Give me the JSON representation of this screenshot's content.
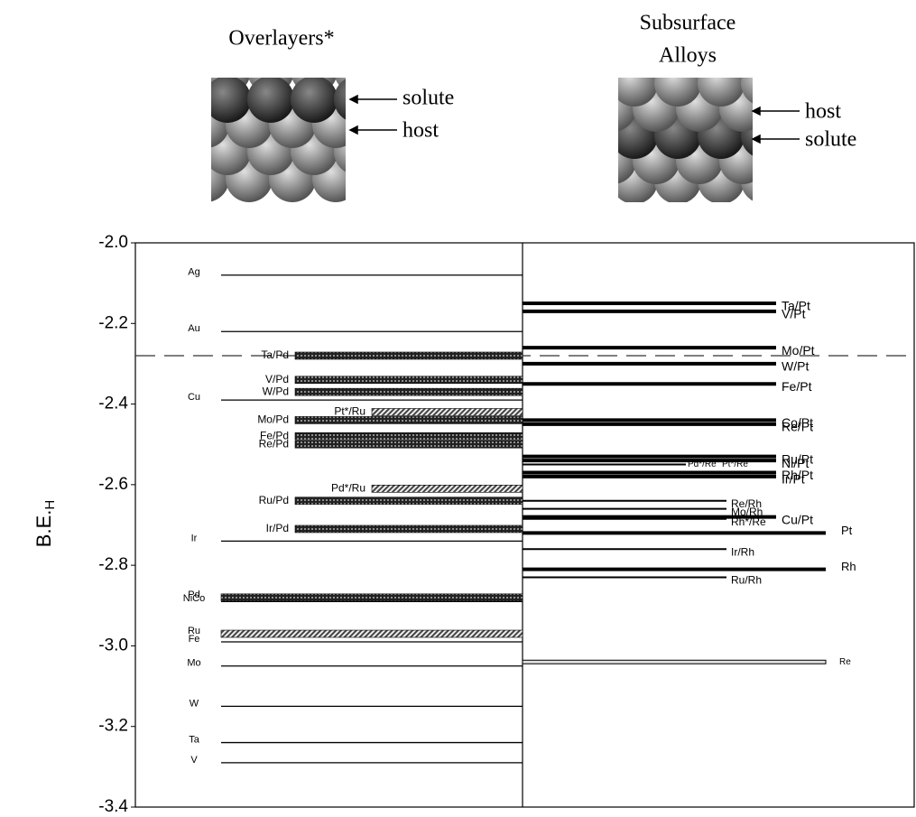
{
  "chart_data": {
    "type": "level",
    "panel_titles": [
      "Overlayers*",
      "Subsurface",
      "Alloys"
    ],
    "annotations": [
      "solute",
      "host",
      "host",
      "solute"
    ],
    "ylabel": {
      "text": "B.E.",
      "subscript": "H"
    },
    "ylim": [
      -3.4,
      -2.0
    ],
    "yticks": [
      {
        "value": -2.0,
        "label": "-2.0"
      },
      {
        "value": -2.2,
        "label": "-2.2"
      },
      {
        "value": -2.4,
        "label": "-2.4"
      },
      {
        "value": -2.6,
        "label": "-2.6"
      },
      {
        "value": -2.8,
        "label": "-2.8"
      },
      {
        "value": -3.0,
        "label": "-3.0"
      },
      {
        "value": -3.2,
        "label": "-3.2"
      },
      {
        "value": -3.4,
        "label": "-3.4"
      }
    ],
    "reference": -2.28,
    "groups": [
      {
        "labels": [
          "Ag",
          "Au",
          "Cu",
          "Ir",
          "NiCo",
          "Fe",
          "Mo",
          "W",
          "Ta",
          "V"
        ],
        "values": [
          -2.08,
          -2.22,
          -2.39,
          -2.74,
          -2.89,
          -2.99,
          -3.05,
          -3.15,
          -3.24,
          -3.29
        ]
      },
      {
        "labels": [
          "Pd"
        ],
        "values": [
          -2.88
        ]
      },
      {
        "labels": [
          "Ru"
        ],
        "values": [
          -2.97
        ]
      },
      {
        "labels": [
          "Ta/Pd",
          "V/Pd",
          "W/Pd",
          "Mo/Pd",
          "Fe/Pd",
          "Re/Pd",
          "Ru/Pd",
          "Ir/Pd"
        ],
        "values": [
          -2.28,
          -2.34,
          -2.37,
          -2.44,
          -2.48,
          -2.5,
          -2.64,
          -2.71
        ]
      },
      {
        "labels": [
          "Pt*/Ru",
          "Pd*/Ru"
        ],
        "values": [
          -2.42,
          -2.61
        ]
      },
      {
        "labels": [
          "Ta/Pt",
          "V/Pt",
          "Mo/Pt",
          "W/Pt",
          "Fe/Pt",
          "Co/Pt",
          "Re/Pt",
          "Ru/Pt",
          "Ni/Pt",
          "Rh/Pt",
          "Ir/Pt",
          "Cu/Pt"
        ],
        "values": [
          -2.15,
          -2.17,
          -2.26,
          -2.3,
          -2.35,
          -2.44,
          -2.45,
          -2.53,
          -2.54,
          -2.57,
          -2.58,
          -2.68
        ]
      },
      {
        "labels": [
          "Pt",
          "Rh"
        ],
        "values": [
          -2.72,
          -2.81
        ]
      },
      {
        "labels": [
          "Re/Rh",
          "Mo/Rh",
          "Rh*/Re",
          "Ir/Rh",
          "Ru/Rh"
        ],
        "values": [
          -2.64,
          -2.66,
          -2.685,
          -2.76,
          -2.83
        ]
      },
      {
        "labels": [
          "Pd*/Re",
          "Pt*/Re"
        ],
        "values": [
          -2.55,
          -2.55
        ]
      },
      {
        "labels": [
          "Re"
        ],
        "values": [
          -3.04
        ]
      }
    ]
  }
}
